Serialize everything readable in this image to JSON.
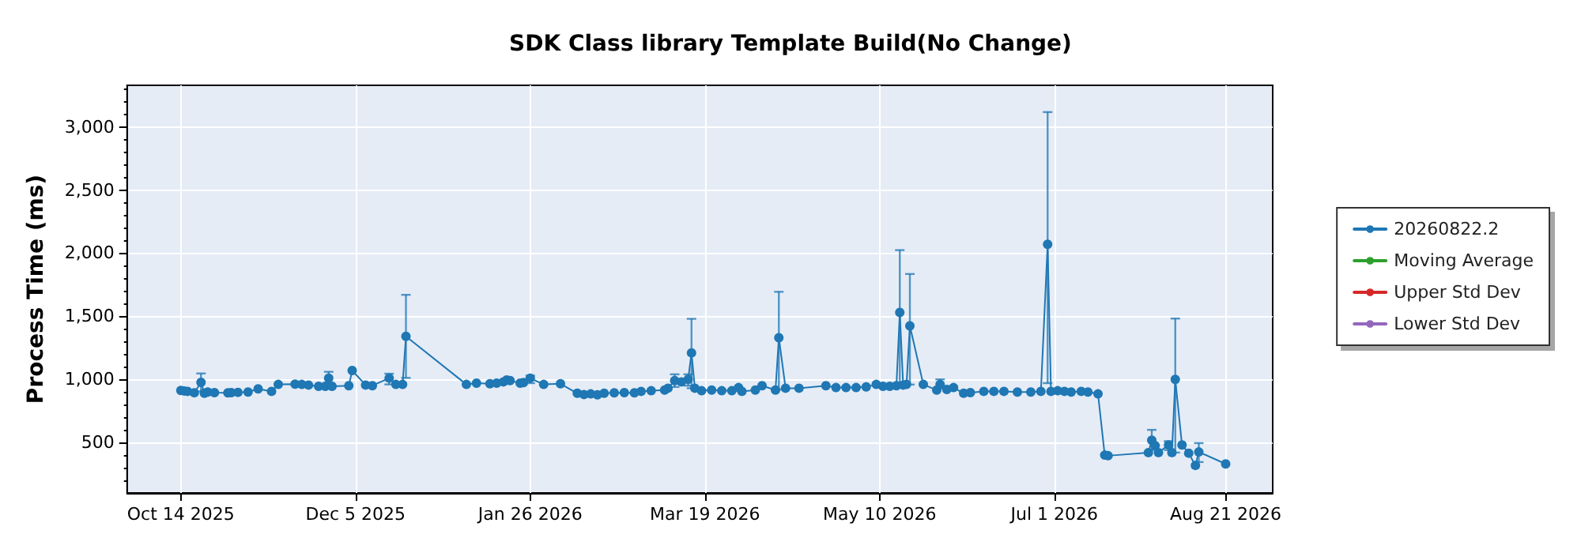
{
  "chart_data": {
    "type": "line",
    "title": "SDK Class library Template Build(No Change)",
    "ylabel": "Process Time (ms)",
    "xlim": [
      "2025-09-28",
      "2026-09-04"
    ],
    "xticks": [
      {
        "value": "2025-10-14",
        "label": "Oct 14 2025"
      },
      {
        "value": "2025-12-05",
        "label": "Dec 5 2025"
      },
      {
        "value": "2026-01-26",
        "label": "Jan 26 2026"
      },
      {
        "value": "2026-03-19",
        "label": "Mar 19 2026"
      },
      {
        "value": "2026-05-10",
        "label": "May 10 2026"
      },
      {
        "value": "2026-07-01",
        "label": "Jul 1 2026"
      },
      {
        "value": "2026-08-21",
        "label": "Aug 21 2026"
      }
    ],
    "ylim": [
      100,
      3330
    ],
    "yticks": [
      {
        "value": 500,
        "label": "500"
      },
      {
        "value": 1000,
        "label": "1,000"
      },
      {
        "value": 1500,
        "label": "1,500"
      },
      {
        "value": 2000,
        "label": "2,000"
      },
      {
        "value": 2500,
        "label": "2,500"
      },
      {
        "value": 3000,
        "label": "3,000"
      }
    ],
    "grid": true,
    "legend": "right",
    "marker": "circle",
    "line_style": "solid",
    "series": [
      {
        "name": "20260822.2",
        "color": "#1f77b4",
        "x": [
          "2025-10-14",
          "2025-10-15",
          "2025-10-16",
          "2025-10-18",
          "2025-10-20",
          "2025-10-21",
          "2025-10-22",
          "2025-10-24",
          "2025-10-28",
          "2025-10-29",
          "2025-10-31",
          "2025-11-03",
          "2025-11-06",
          "2025-11-10",
          "2025-11-12",
          "2025-11-17",
          "2025-11-19",
          "2025-11-21",
          "2025-11-24",
          "2025-11-26",
          "2025-11-27",
          "2025-11-28",
          "2025-12-03",
          "2025-12-04",
          "2025-12-08",
          "2025-12-10",
          "2025-12-15",
          "2025-12-17",
          "2025-12-19",
          "2025-12-20",
          "2026-01-07",
          "2026-01-10",
          "2026-01-14",
          "2026-01-16",
          "2026-01-18",
          "2026-01-19",
          "2026-01-20",
          "2026-01-23",
          "2026-01-24",
          "2026-01-26",
          "2026-01-30",
          "2026-02-04",
          "2026-02-09",
          "2026-02-11",
          "2026-02-13",
          "2026-02-15",
          "2026-02-17",
          "2026-02-20",
          "2026-02-23",
          "2026-02-26",
          "2026-02-28",
          "2026-03-03",
          "2026-03-07",
          "2026-03-08",
          "2026-03-10",
          "2026-03-12",
          "2026-03-14",
          "2026-03-15",
          "2026-03-16",
          "2026-03-18",
          "2026-03-21",
          "2026-03-24",
          "2026-03-27",
          "2026-03-29",
          "2026-03-30",
          "2026-04-03",
          "2026-04-05",
          "2026-04-09",
          "2026-04-10",
          "2026-04-12",
          "2026-04-16",
          "2026-04-24",
          "2026-04-27",
          "2026-04-30",
          "2026-05-03",
          "2026-05-06",
          "2026-05-09",
          "2026-05-11",
          "2026-05-13",
          "2026-05-15",
          "2026-05-16",
          "2026-05-17",
          "2026-05-18",
          "2026-05-19",
          "2026-05-23",
          "2026-05-27",
          "2026-05-28",
          "2026-05-30",
          "2026-06-01",
          "2026-06-04",
          "2026-06-06",
          "2026-06-10",
          "2026-06-13",
          "2026-06-16",
          "2026-06-20",
          "2026-06-24",
          "2026-06-27",
          "2026-06-29",
          "2026-06-30",
          "2026-07-02",
          "2026-07-04",
          "2026-07-06",
          "2026-07-09",
          "2026-07-11",
          "2026-07-14",
          "2026-07-16",
          "2026-07-17",
          "2026-07-29",
          "2026-07-30",
          "2026-07-31",
          "2026-08-01",
          "2026-08-04",
          "2026-08-05",
          "2026-08-06",
          "2026-08-08",
          "2026-08-10",
          "2026-08-12",
          "2026-08-13",
          "2026-08-21"
        ],
        "values": [
          912,
          908,
          905,
          894,
          976,
          890,
          900,
          895,
          893,
          895,
          897,
          900,
          925,
          905,
          960,
          962,
          960,
          955,
          945,
          945,
          1010,
          945,
          950,
          1070,
          955,
          950,
          1010,
          960,
          960,
          1341,
          960,
          970,
          965,
          970,
          980,
          995,
          990,
          970,
          975,
          1010,
          960,
          965,
          890,
          880,
          885,
          878,
          890,
          893,
          895,
          893,
          905,
          910,
          915,
          930,
          990,
          980,
          1000,
          1210,
          930,
          910,
          915,
          910,
          910,
          935,
          905,
          915,
          950,
          915,
          1330,
          930,
          930,
          950,
          935,
          935,
          935,
          940,
          960,
          945,
          945,
          950,
          1530,
          955,
          960,
          1424,
          960,
          915,
          960,
          920,
          935,
          890,
          895,
          905,
          905,
          905,
          900,
          900,
          905,
          2070,
          905,
          910,
          905,
          900,
          905,
          900,
          885,
          400,
          395,
          420,
          518,
          475,
          420,
          480,
          420,
          1000,
          480,
          415,
          318,
          425,
          330
        ],
        "errors": [
          null,
          null,
          null,
          null,
          [
            905,
            1047
          ],
          null,
          null,
          null,
          null,
          null,
          null,
          null,
          null,
          null,
          null,
          null,
          null,
          null,
          null,
          null,
          [
            945,
            1060
          ],
          null,
          null,
          null,
          null,
          null,
          [
            960,
            1045
          ],
          null,
          null,
          [
            1012,
            1670
          ],
          null,
          null,
          null,
          null,
          null,
          null,
          null,
          null,
          null,
          [
            970,
            1030
          ],
          null,
          null,
          null,
          null,
          null,
          null,
          null,
          null,
          null,
          null,
          null,
          null,
          null,
          null,
          [
            940,
            1040
          ],
          null,
          [
            950,
            1040
          ],
          [
            930,
            1480
          ],
          null,
          null,
          null,
          null,
          null,
          null,
          null,
          null,
          null,
          null,
          [
            920,
            1694
          ],
          null,
          null,
          null,
          null,
          null,
          null,
          null,
          null,
          null,
          null,
          null,
          [
            959,
            2024
          ],
          null,
          null,
          [
            959,
            1835
          ],
          null,
          null,
          [
            930,
            1000
          ],
          null,
          null,
          null,
          null,
          null,
          null,
          null,
          null,
          null,
          null,
          [
            970,
            3118
          ],
          null,
          null,
          null,
          null,
          null,
          null,
          null,
          null,
          null,
          null,
          [
            440,
            600
          ],
          null,
          null,
          [
            440,
            510
          ],
          null,
          [
            420,
            1482
          ],
          null,
          null,
          null,
          [
            345,
            495
          ],
          null
        ]
      },
      {
        "name": "Moving Average",
        "color": "#2ca02c"
      },
      {
        "name": "Upper Std Dev",
        "color": "#d62728"
      },
      {
        "name": "Lower Std Dev",
        "color": "#9467bd"
      }
    ]
  }
}
